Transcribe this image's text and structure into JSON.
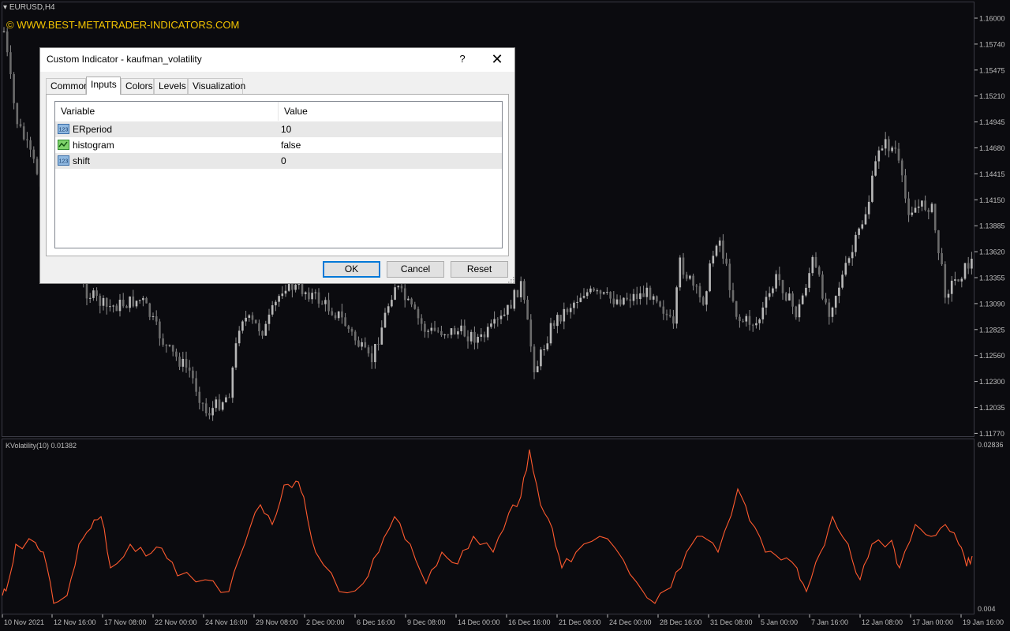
{
  "chart": {
    "symbol": "EURUSD,H4",
    "watermark": "© WWW.BEST-METATRADER-INDICATORS.COM",
    "price_ticks": [
      "1.16000",
      "1.15740",
      "1.15475",
      "1.15210",
      "1.14945",
      "1.14680",
      "1.14415",
      "1.14150",
      "1.13885",
      "1.13620",
      "1.13355",
      "1.13090",
      "1.12825",
      "1.12560",
      "1.12300",
      "1.12035",
      "1.11770"
    ],
    "time_ticks": [
      "10 Nov 2021",
      "12 Nov 16:00",
      "17 Nov 08:00",
      "22 Nov 00:00",
      "24 Nov 16:00",
      "29 Nov 08:00",
      "2 Dec 00:00",
      "6 Dec 16:00",
      "9 Dec 08:00",
      "14 Dec 00:00",
      "16 Dec 16:00",
      "21 Dec 08:00",
      "24 Dec 00:00",
      "28 Dec 16:00",
      "31 Dec 08:00",
      "5 Jan 00:00",
      "7 Jan 16:00",
      "12 Jan 08:00",
      "17 Jan 00:00",
      "19 Jan 16:00"
    ],
    "colors": {
      "background": "#0b0b0f",
      "candle": "#c0c0c0",
      "grid": "#3a3a44",
      "text": "#bdbdbd",
      "indicator": "#ff5a2e",
      "watermark": "#f3c400"
    }
  },
  "subwindow": {
    "label": "KVolatility(10) 0.01382",
    "scale_top": "0.02836",
    "scale_bottom": "0.004"
  },
  "dialog": {
    "title": "Custom Indicator - kaufman_volatility",
    "help_label": "?",
    "close_label": "✕",
    "tabs": [
      {
        "label": "Common",
        "active": false
      },
      {
        "label": "Inputs",
        "active": true
      },
      {
        "label": "Colors",
        "active": false
      },
      {
        "label": "Levels",
        "active": false
      },
      {
        "label": "Visualization",
        "active": false
      }
    ],
    "columns": [
      "Variable",
      "Value"
    ],
    "inputs": [
      {
        "variable": "ERperiod",
        "value": "10",
        "icon": "number-icon"
      },
      {
        "variable": "histogram",
        "value": "false",
        "icon": "boolean-icon"
      },
      {
        "variable": "shift",
        "value": "0",
        "icon": "number-icon"
      }
    ],
    "buttons": {
      "ok": "OK",
      "cancel": "Cancel",
      "reset": "Reset"
    }
  }
}
